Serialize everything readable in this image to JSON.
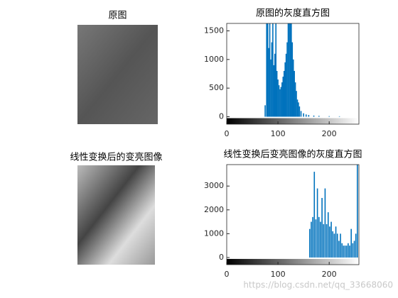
{
  "chart_data": [
    {
      "type": "image",
      "title": "原图"
    },
    {
      "type": "bar",
      "title": "原图的灰度直方图",
      "color": "#0072bd",
      "x": [
        75,
        78,
        80,
        82,
        84,
        86,
        88,
        90,
        92,
        94,
        96,
        98,
        100,
        102,
        104,
        106,
        108,
        110,
        112,
        114,
        116,
        118,
        120,
        122,
        124,
        126,
        128,
        130,
        132,
        134,
        136,
        138,
        140,
        142,
        145,
        150,
        155,
        160,
        170,
        180,
        200,
        220
      ],
      "values": [
        200,
        1630,
        1630,
        1200,
        1630,
        1000,
        1300,
        1630,
        900,
        1100,
        1630,
        800,
        650,
        550,
        480,
        520,
        600,
        700,
        800,
        950,
        1100,
        1300,
        1630,
        1630,
        1630,
        1630,
        1300,
        1000,
        800,
        600,
        450,
        300,
        250,
        180,
        100,
        60,
        40,
        30,
        20,
        15,
        10,
        8
      ],
      "xlim": [
        0,
        258
      ],
      "xticks": [
        0,
        100,
        200
      ],
      "ylim": [
        -130,
        1630
      ],
      "yticks": [
        0,
        500,
        1000,
        1500
      ]
    },
    {
      "type": "image",
      "title": "线性变换后的变亮图像"
    },
    {
      "type": "bar",
      "title": "线性变换后变亮图像的灰度直方图",
      "color": "#0072bd",
      "x": [
        162,
        165,
        168,
        171,
        174,
        177,
        180,
        183,
        186,
        189,
        192,
        195,
        198,
        201,
        204,
        207,
        210,
        213,
        216,
        219,
        222,
        225,
        228,
        231,
        234,
        237,
        240,
        243,
        246,
        249,
        252,
        255
      ],
      "values": [
        1200,
        1500,
        1700,
        3600,
        1600,
        2900,
        1700,
        1500,
        2500,
        1400,
        2900,
        1400,
        1900,
        1300,
        1500,
        1100,
        1000,
        1300,
        1000,
        700,
        1000,
        600,
        500,
        500,
        500,
        600,
        500,
        1200,
        600,
        700,
        1000,
        3900
      ],
      "xlim": [
        0,
        258
      ],
      "xticks": [
        0,
        100,
        200
      ],
      "ylim": [
        -300,
        3900
      ],
      "yticks": [
        0,
        1000,
        2000,
        3000
      ]
    }
  ],
  "watermark": "https://blog.csdn.net/qq_33668060"
}
